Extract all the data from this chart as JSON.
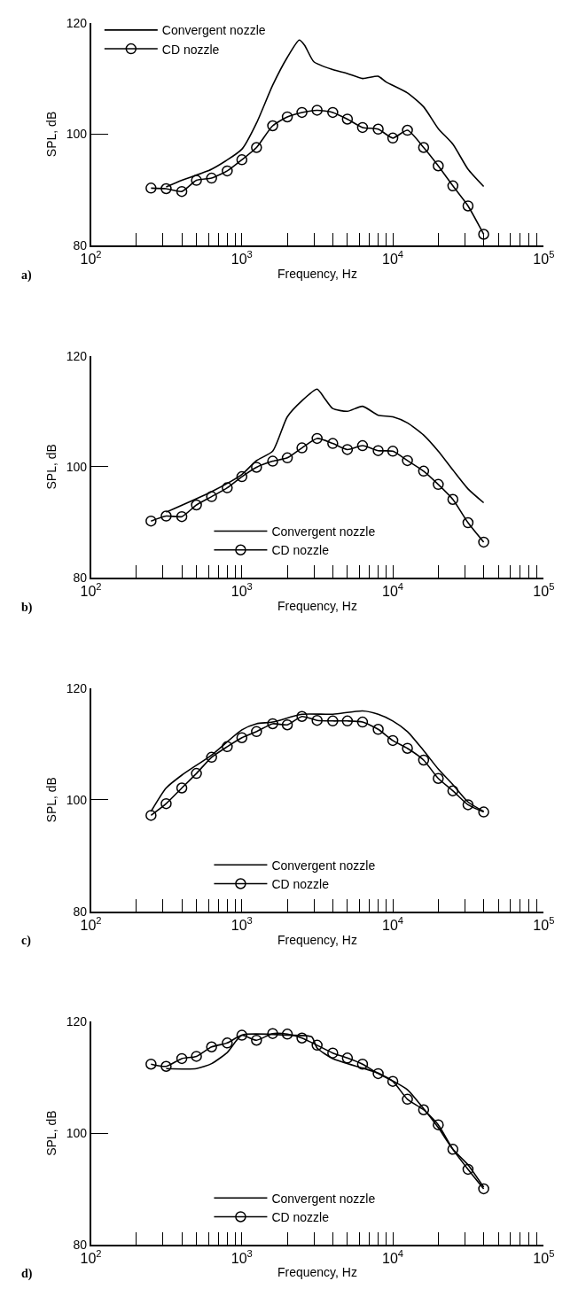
{
  "chart_data": [
    {
      "type": "line",
      "xlabel": "Frequency, Hz",
      "ylabel": "SPL, dB",
      "annotations": [
        "a)"
      ],
      "log": "x",
      "xlim": [
        100,
        100000
      ],
      "ylim": [
        80,
        120
      ],
      "xticks": [
        {
          "value": 100,
          "label": "10$^{2}$"
        },
        {
          "value": 200,
          "label": null
        },
        {
          "value": 300,
          "label": null
        },
        {
          "value": 400,
          "label": null
        },
        {
          "value": 500,
          "label": null
        },
        {
          "value": 600,
          "label": null
        },
        {
          "value": 700,
          "label": null
        },
        {
          "value": 800,
          "label": null
        },
        {
          "value": 900,
          "label": null
        },
        {
          "value": 1000,
          "label": "10$^{3}$"
        },
        {
          "value": 2000,
          "label": null
        },
        {
          "value": 3000,
          "label": null
        },
        {
          "value": 4000,
          "label": null
        },
        {
          "value": 5000,
          "label": null
        },
        {
          "value": 6000,
          "label": null
        },
        {
          "value": 7000,
          "label": null
        },
        {
          "value": 8000,
          "label": null
        },
        {
          "value": 9000,
          "label": null
        },
        {
          "value": 10000,
          "label": "10$^{4}$"
        },
        {
          "value": 20000,
          "label": null
        },
        {
          "value": 30000,
          "label": null
        },
        {
          "value": 40000,
          "label": null
        },
        {
          "value": 50000,
          "label": null
        },
        {
          "value": 60000,
          "label": null
        },
        {
          "value": 70000,
          "label": null
        },
        {
          "value": 80000,
          "label": null
        },
        {
          "value": 90000,
          "label": null
        },
        {
          "value": 100000,
          "label": "10$^{5}$"
        }
      ],
      "yticks": [
        80,
        100,
        120
      ],
      "legend": "top left",
      "line_style": "solid",
      "series": [
        {
          "name": "Convergent nozzle",
          "color": "#000000",
          "marker": "none",
          "x": [
            315,
            400,
            630,
            1000,
            1250,
            1600,
            2000,
            2400,
            2600,
            3000,
            4000,
            5000,
            6300,
            8000,
            9000,
            12500,
            16000,
            20000,
            25000,
            31500,
            40000
          ],
          "values": [
            90.5,
            91.7,
            93.7,
            97.3,
            102,
            108.8,
            113.8,
            116.9,
            116,
            113,
            111.6,
            110.9,
            110,
            110.4,
            109.4,
            107.4,
            104.9,
            101,
            98.2,
            93.7,
            90.6
          ]
        },
        {
          "name": "CD nozzle",
          "color": "#000000",
          "marker": "circle",
          "x": [
            250,
            315,
            400,
            500,
            630,
            800,
            1000,
            1250,
            1600,
            2000,
            2500,
            3150,
            4000,
            5000,
            6300,
            8000,
            10000,
            12500,
            16000,
            20000,
            25000,
            31500,
            40000
          ],
          "values": [
            90.3,
            90.2,
            89.7,
            91.7,
            92.1,
            93.4,
            95.4,
            97.6,
            101.5,
            103.1,
            103.9,
            104.3,
            103.9,
            102.7,
            101.2,
            100.9,
            99.3,
            100.7,
            97.6,
            94.3,
            90.7,
            87.1,
            82.0
          ]
        }
      ]
    },
    {
      "type": "line",
      "xlabel": "Frequency, Hz",
      "ylabel": "SPL, dB",
      "annotations": [
        "b)"
      ],
      "log": "x",
      "xlim": [
        100,
        100000
      ],
      "ylim": [
        80,
        120
      ],
      "xticks": [
        {
          "value": 100,
          "label": "10$^{2}$"
        },
        {
          "value": 200,
          "label": null
        },
        {
          "value": 300,
          "label": null
        },
        {
          "value": 400,
          "label": null
        },
        {
          "value": 500,
          "label": null
        },
        {
          "value": 600,
          "label": null
        },
        {
          "value": 700,
          "label": null
        },
        {
          "value": 800,
          "label": null
        },
        {
          "value": 900,
          "label": null
        },
        {
          "value": 1000,
          "label": "10$^{3}$"
        },
        {
          "value": 2000,
          "label": null
        },
        {
          "value": 3000,
          "label": null
        },
        {
          "value": 4000,
          "label": null
        },
        {
          "value": 5000,
          "label": null
        },
        {
          "value": 6000,
          "label": null
        },
        {
          "value": 7000,
          "label": null
        },
        {
          "value": 8000,
          "label": null
        },
        {
          "value": 9000,
          "label": null
        },
        {
          "value": 10000,
          "label": "10$^{4}$"
        },
        {
          "value": 20000,
          "label": null
        },
        {
          "value": 30000,
          "label": null
        },
        {
          "value": 40000,
          "label": null
        },
        {
          "value": 50000,
          "label": null
        },
        {
          "value": 60000,
          "label": null
        },
        {
          "value": 70000,
          "label": null
        },
        {
          "value": 80000,
          "label": null
        },
        {
          "value": 90000,
          "label": null
        },
        {
          "value": 100000,
          "label": "10$^{5}$"
        }
      ],
      "yticks": [
        80,
        100,
        120
      ],
      "legend": "bottom",
      "line_style": "solid",
      "series": [
        {
          "name": "Convergent nozzle",
          "color": "#000000",
          "marker": "none",
          "x": [
            315,
            630,
            1000,
            1250,
            1600,
            2000,
            2500,
            3150,
            3500,
            4000,
            5000,
            6300,
            8000,
            10000,
            12500,
            16000,
            20000,
            25000,
            31500,
            40000
          ],
          "values": [
            91.8,
            95.5,
            98.6,
            101.1,
            102.8,
            109,
            111.9,
            114,
            112.5,
            110.5,
            110,
            110.9,
            109.3,
            109,
            107.9,
            105.7,
            102.8,
            99.4,
            96,
            93.5
          ]
        },
        {
          "name": "CD nozzle",
          "color": "#000000",
          "marker": "circle",
          "x": [
            250,
            315,
            400,
            500,
            630,
            800,
            1000,
            1250,
            1600,
            2000,
            2500,
            3150,
            4000,
            5000,
            6300,
            8000,
            10000,
            12500,
            16000,
            20000,
            25000,
            31500,
            40000
          ],
          "values": [
            90.2,
            91.1,
            91,
            93.1,
            94.6,
            96.2,
            98.2,
            99.9,
            101,
            101.6,
            103.4,
            105.1,
            104.2,
            103.1,
            103.8,
            102.9,
            102.8,
            101.1,
            99.2,
            96.8,
            94.1,
            89.9,
            86.4
          ]
        }
      ]
    },
    {
      "type": "line",
      "xlabel": "Frequency, Hz",
      "ylabel": "SPL, dB",
      "annotations": [
        "c)"
      ],
      "log": "x",
      "xlim": [
        100,
        100000
      ],
      "ylim": [
        80,
        120
      ],
      "xticks": [
        {
          "value": 100,
          "label": "10$^{2}$"
        },
        {
          "value": 200,
          "label": null
        },
        {
          "value": 300,
          "label": null
        },
        {
          "value": 400,
          "label": null
        },
        {
          "value": 500,
          "label": null
        },
        {
          "value": 600,
          "label": null
        },
        {
          "value": 700,
          "label": null
        },
        {
          "value": 800,
          "label": null
        },
        {
          "value": 900,
          "label": null
        },
        {
          "value": 1000,
          "label": "10$^{3}$"
        },
        {
          "value": 2000,
          "label": null
        },
        {
          "value": 3000,
          "label": null
        },
        {
          "value": 4000,
          "label": null
        },
        {
          "value": 5000,
          "label": null
        },
        {
          "value": 6000,
          "label": null
        },
        {
          "value": 7000,
          "label": null
        },
        {
          "value": 8000,
          "label": null
        },
        {
          "value": 9000,
          "label": null
        },
        {
          "value": 10000,
          "label": "10$^{4}$"
        },
        {
          "value": 20000,
          "label": null
        },
        {
          "value": 30000,
          "label": null
        },
        {
          "value": 40000,
          "label": null
        },
        {
          "value": 50000,
          "label": null
        },
        {
          "value": 60000,
          "label": null
        },
        {
          "value": 70000,
          "label": null
        },
        {
          "value": 80000,
          "label": null
        },
        {
          "value": 90000,
          "label": null
        },
        {
          "value": 100000,
          "label": "10$^{5}$"
        }
      ],
      "yticks": [
        80,
        100,
        120
      ],
      "legend": "bottom",
      "line_style": "solid",
      "series": [
        {
          "name": "Convergent nozzle",
          "color": "#000000",
          "marker": "none",
          "x": [
            250,
            315,
            400,
            630,
            1000,
            1250,
            1600,
            2500,
            4000,
            6300,
            8000,
            10000,
            12500,
            16000,
            20000,
            25000,
            31500,
            40000
          ],
          "values": [
            97.9,
            102.1,
            104.4,
            108,
            112.5,
            113.6,
            113.9,
            115.3,
            115.3,
            115.9,
            115.3,
            114.1,
            112.2,
            108.8,
            105.5,
            102.7,
            99.6,
            97.9
          ]
        },
        {
          "name": "CD nozzle",
          "color": "#000000",
          "marker": "circle",
          "x": [
            250,
            315,
            400,
            500,
            630,
            800,
            1000,
            1250,
            1600,
            2000,
            2500,
            3150,
            4000,
            5000,
            6300,
            8000,
            10000,
            12500,
            16000,
            20000,
            25000,
            31500,
            40000
          ],
          "values": [
            97.2,
            99.3,
            102.1,
            104.7,
            107.6,
            109.5,
            111.1,
            112.2,
            113.6,
            113.4,
            114.9,
            114.2,
            114.1,
            114.1,
            113.9,
            112.6,
            110.6,
            109.2,
            107.1,
            103.8,
            101.6,
            99.1,
            97.8
          ]
        }
      ]
    },
    {
      "type": "line",
      "xlabel": "Frequency, Hz",
      "ylabel": "SPL, dB",
      "annotations": [
        "d)"
      ],
      "log": "x",
      "xlim": [
        100,
        100000
      ],
      "ylim": [
        80,
        120
      ],
      "xticks": [
        {
          "value": 100,
          "label": "10$^{2}$"
        },
        {
          "value": 200,
          "label": null
        },
        {
          "value": 300,
          "label": null
        },
        {
          "value": 400,
          "label": null
        },
        {
          "value": 500,
          "label": null
        },
        {
          "value": 600,
          "label": null
        },
        {
          "value": 700,
          "label": null
        },
        {
          "value": 800,
          "label": null
        },
        {
          "value": 900,
          "label": null
        },
        {
          "value": 1000,
          "label": "10$^{3}$"
        },
        {
          "value": 2000,
          "label": null
        },
        {
          "value": 3000,
          "label": null
        },
        {
          "value": 4000,
          "label": null
        },
        {
          "value": 5000,
          "label": null
        },
        {
          "value": 6000,
          "label": null
        },
        {
          "value": 7000,
          "label": null
        },
        {
          "value": 8000,
          "label": null
        },
        {
          "value": 9000,
          "label": null
        },
        {
          "value": 10000,
          "label": "10$^{4}$"
        },
        {
          "value": 20000,
          "label": null
        },
        {
          "value": 30000,
          "label": null
        },
        {
          "value": 40000,
          "label": null
        },
        {
          "value": 50000,
          "label": null
        },
        {
          "value": 60000,
          "label": null
        },
        {
          "value": 70000,
          "label": null
        },
        {
          "value": 80000,
          "label": null
        },
        {
          "value": 90000,
          "label": null
        },
        {
          "value": 100000,
          "label": "10$^{5}$"
        }
      ],
      "yticks": [
        80,
        100,
        120
      ],
      "legend": "bottom",
      "line_style": "solid",
      "series": [
        {
          "name": "Convergent nozzle",
          "color": "#000000",
          "marker": "none",
          "x": [
            315,
            500,
            630,
            800,
            1000,
            2000,
            2900,
            3150,
            4000,
            6300,
            8000,
            10000,
            12500,
            16000,
            20000,
            25000,
            31500,
            40000
          ],
          "values": [
            111.6,
            111.6,
            112.5,
            114.5,
            117.6,
            117.6,
            117.3,
            115.3,
            113.4,
            111.7,
            110.8,
            109.4,
            107.8,
            104.4,
            101,
            97.1,
            94.3,
            90.3
          ]
        },
        {
          "name": "CD nozzle",
          "color": "#000000",
          "marker": "circle",
          "x": [
            250,
            315,
            400,
            500,
            630,
            800,
            1000,
            1250,
            1600,
            2000,
            2500,
            3150,
            4000,
            5000,
            6300,
            8000,
            10000,
            12500,
            16000,
            20000,
            25000,
            31500,
            40000
          ],
          "values": [
            112.4,
            112,
            113.4,
            113.8,
            115.5,
            116.2,
            117.6,
            116.7,
            117.9,
            117.8,
            117.1,
            115.8,
            114.4,
            113.5,
            112.4,
            110.7,
            109.3,
            106.1,
            104.2,
            101.5,
            97.1,
            93.5,
            90
          ]
        }
      ]
    }
  ]
}
